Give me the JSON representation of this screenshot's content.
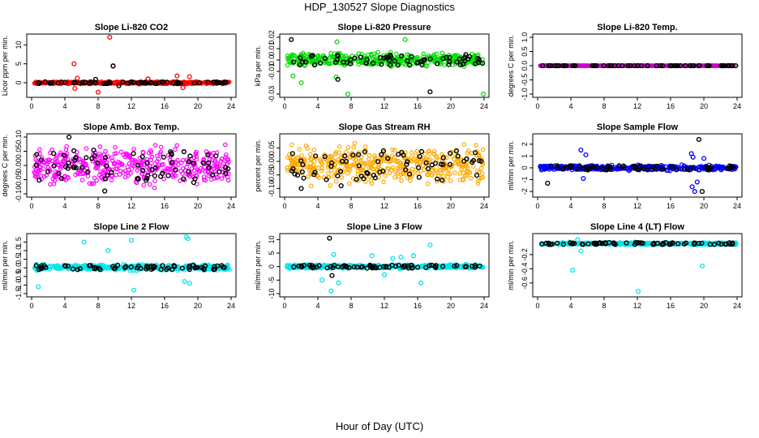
{
  "page": {
    "title": "HDP_130527  Slope Diagnostics",
    "xlabel": "Hour of Day (UTC)"
  },
  "chart_data": [
    {
      "type": "scatter",
      "title": "Slope Li-820 CO2",
      "ylabel": "Licor ppm per min.",
      "xlim": [
        0,
        24
      ],
      "ylim": [
        -3,
        12
      ],
      "xticks": [
        0,
        4,
        8,
        12,
        16,
        20,
        24
      ],
      "yticks": [
        0,
        5,
        10
      ],
      "color": "#ff0000",
      "highlight_color": "#000000",
      "band": [
        -0.4,
        0.4
      ],
      "outliers": [
        [
          5.1,
          5
        ],
        [
          5.2,
          -1.5
        ],
        [
          9.4,
          12
        ],
        [
          9.8,
          4.5
        ],
        [
          5.5,
          1.2
        ],
        [
          14,
          1
        ],
        [
          17.5,
          1.8
        ],
        [
          18.2,
          -1.3
        ],
        [
          19,
          1.6
        ],
        [
          8,
          -2.5
        ]
      ],
      "highlight_outliers": [
        [
          9.8,
          4.4
        ],
        [
          7.7,
          0.9
        ],
        [
          10.5,
          -0.8
        ]
      ]
    },
    {
      "type": "scatter",
      "title": "Slope Li-820 Pressure",
      "ylabel": "kPa per min.",
      "xlim": [
        0,
        24
      ],
      "ylim": [
        -0.03,
        0.02
      ],
      "xticks": [
        0,
        4,
        8,
        12,
        16,
        20,
        24
      ],
      "yticks": [
        -0.03,
        -0.01,
        0.0,
        0.01,
        0.02
      ],
      "ytick_labels": [
        "-0.03",
        "-0.01",
        "0.0",
        "0.01",
        "0.02"
      ],
      "color": "#00dd00",
      "highlight_color": "#000000",
      "band": [
        -0.008,
        0.008
      ],
      "outliers": [
        [
          1,
          -0.014
        ],
        [
          2,
          -0.02
        ],
        [
          7.6,
          -0.03
        ],
        [
          6.2,
          -0.015
        ],
        [
          23.9,
          -0.03
        ],
        [
          14.5,
          0.018
        ],
        [
          6.3,
          0.016
        ]
      ],
      "highlight_outliers": [
        [
          0.8,
          0.018
        ],
        [
          17.5,
          -0.028
        ],
        [
          6.4,
          -0.017
        ]
      ]
    },
    {
      "type": "scatter",
      "title": "Slope Li-820 Temp.",
      "ylabel": "degrees C per min.",
      "xlim": [
        0,
        24
      ],
      "ylim": [
        -1.0,
        1.0
      ],
      "xticks": [
        0,
        4,
        8,
        12,
        16,
        20,
        24
      ],
      "yticks": [
        -1.0,
        -0.5,
        0.0,
        0.5,
        1.0
      ],
      "ytick_labels": [
        "-1.0",
        "-0.5",
        "0.0",
        "0.5",
        "1.0"
      ],
      "color": "#cc00cc",
      "highlight_color": "#000000",
      "band": [
        0,
        0
      ],
      "outliers": [],
      "highlight_outliers": []
    },
    {
      "type": "scatter",
      "title": "Slope Amb. Box Temp.",
      "ylabel": "degrees C per min.",
      "xlim": [
        0,
        24
      ],
      "ylim": [
        -0.1,
        0.1
      ],
      "xticks": [
        0,
        4,
        8,
        12,
        16,
        20,
        24
      ],
      "yticks": [
        -0.1,
        -0.05,
        0.0,
        0.05,
        0.1
      ],
      "ytick_labels": [
        "-0.10",
        "-0.05",
        "0.00",
        "0.05",
        "0.10"
      ],
      "color": "#ff00ff",
      "highlight_color": "#000000",
      "band": [
        -0.09,
        0.09
      ],
      "outliers": [],
      "highlight_outliers": [
        [
          4.5,
          0.1
        ],
        [
          8.8,
          -0.09
        ],
        [
          19.5,
          -0.06
        ]
      ]
    },
    {
      "type": "scatter",
      "title": "Slope Gas Stream RH",
      "ylabel": "percent per min.",
      "xlim": [
        0,
        24
      ],
      "ylim": [
        -0.12,
        0.09
      ],
      "xticks": [
        0,
        4,
        8,
        12,
        16,
        20,
        24
      ],
      "yticks": [
        -0.1,
        -0.05,
        0.0,
        0.05
      ],
      "ytick_labels": [
        "-0.10",
        "-0.05",
        "0.00",
        "0.05"
      ],
      "color": "#ffaa00",
      "highlight_color": "#000000",
      "band": [
        -0.11,
        0.08
      ],
      "outliers": [],
      "highlight_outliers": [
        [
          2,
          -0.1
        ],
        [
          6.8,
          -0.09
        ]
      ]
    },
    {
      "type": "scatter",
      "title": "Slope Sample Flow",
      "ylabel": "ml/min per min.",
      "xlim": [
        0,
        24
      ],
      "ylim": [
        -2.2,
        2.6
      ],
      "xticks": [
        0,
        4,
        8,
        12,
        16,
        20,
        24
      ],
      "yticks": [
        -2,
        -1,
        0,
        1,
        2
      ],
      "color": "#0000ff",
      "highlight_color": "#000000",
      "band": [
        -0.3,
        0.3
      ],
      "outliers": [
        [
          5.2,
          1.5
        ],
        [
          5.8,
          1.1
        ],
        [
          5.5,
          -0.9
        ],
        [
          18.5,
          1.2
        ],
        [
          18.9,
          -2.0
        ],
        [
          19.2,
          -1.2
        ],
        [
          18.6,
          -1.6
        ],
        [
          20,
          0.8
        ],
        [
          18.7,
          0.9
        ]
      ],
      "highlight_outliers": [
        [
          19.4,
          2.4
        ],
        [
          19.8,
          -2.0
        ],
        [
          1.2,
          -1.3
        ]
      ]
    },
    {
      "type": "scatter",
      "title": "Slope Line 2 Flow",
      "ylabel": "ml/min per min.",
      "xlim": [
        0,
        24
      ],
      "ylim": [
        -1.5,
        1.8
      ],
      "xticks": [
        0,
        4,
        8,
        12,
        16,
        20,
        24
      ],
      "yticks": [
        -1.5,
        -1.0,
        -0.5,
        0.0,
        0.5,
        1.0,
        1.5
      ],
      "ytick_labels": [
        "-1.5",
        "-1.0",
        "-0.5",
        "0.0",
        "0.5",
        "1.0",
        "1.5"
      ],
      "color": "#00e5ee",
      "highlight_color": "#000000",
      "band": [
        -0.2,
        0.25
      ],
      "outliers": [
        [
          6.3,
          1.5
        ],
        [
          12,
          1.6
        ],
        [
          18.6,
          1.8
        ],
        [
          18.8,
          1.7
        ],
        [
          19,
          -0.9
        ],
        [
          9.2,
          1
        ],
        [
          0.8,
          -1.1
        ],
        [
          18.4,
          -0.8
        ],
        [
          12.3,
          -1.3
        ]
      ],
      "highlight_outliers": []
    },
    {
      "type": "scatter",
      "title": "Slope Line 3 Flow",
      "ylabel": "ml/min per min.",
      "xlim": [
        0,
        24
      ],
      "ylim": [
        -10,
        11
      ],
      "xticks": [
        0,
        4,
        8,
        12,
        16,
        20,
        24
      ],
      "yticks": [
        -10,
        -5,
        0,
        5,
        10
      ],
      "color": "#00e5ee",
      "highlight_color": "#000000",
      "band": [
        -1,
        1
      ],
      "outliers": [
        [
          5.6,
          -9
        ],
        [
          5.9,
          4.5
        ],
        [
          10.5,
          4
        ],
        [
          14,
          3.5
        ],
        [
          16.4,
          -6
        ],
        [
          17.5,
          8
        ],
        [
          4.5,
          -5
        ],
        [
          6.5,
          -6
        ],
        [
          12,
          -3
        ],
        [
          15.5,
          4
        ],
        [
          13,
          3
        ]
      ],
      "highlight_outliers": [
        [
          5.4,
          10.5
        ],
        [
          5.7,
          -3.3
        ]
      ]
    },
    {
      "type": "scatter",
      "title": "Slope Line 4 (LT) Flow",
      "ylabel": "ml/min per min.",
      "xlim": [
        0,
        24
      ],
      "ylim": [
        -0.75,
        0.05
      ],
      "xticks": [
        0,
        4,
        8,
        12,
        16,
        20,
        24
      ],
      "yticks": [
        -0.6,
        -0.4,
        -0.2
      ],
      "ytick_labels": [
        "-0.6",
        "-0.4",
        "-0.2"
      ],
      "color": "#00e5ee",
      "highlight_color": "#000000",
      "band": [
        -0.07,
        -0.02
      ],
      "outliers": [
        [
          4.2,
          -0.42
        ],
        [
          12.1,
          -0.72
        ],
        [
          19.8,
          -0.36
        ],
        [
          5.2,
          -0.15
        ],
        [
          4.8,
          0.01
        ]
      ],
      "highlight_outliers": []
    }
  ]
}
